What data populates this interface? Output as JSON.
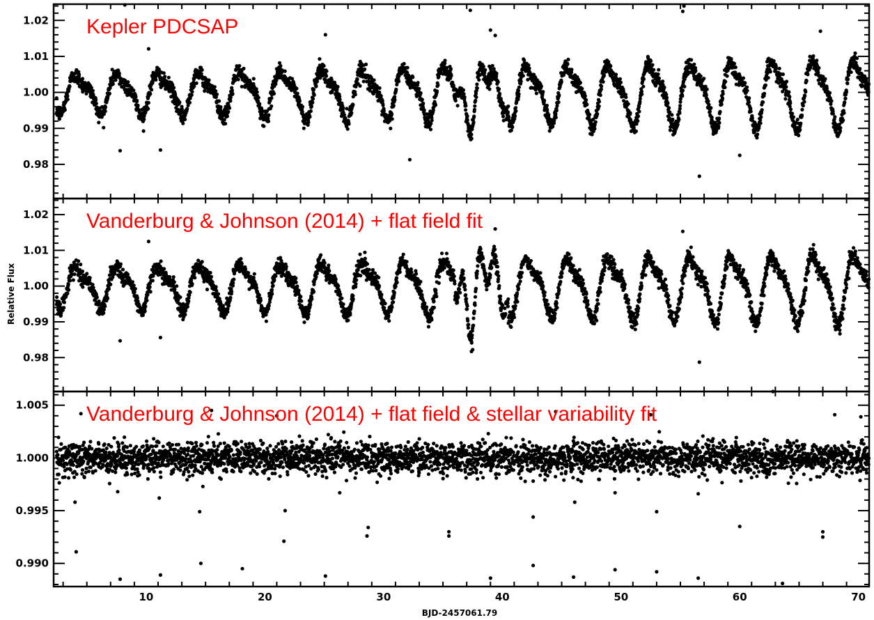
{
  "chart_data": {
    "type": "scatter",
    "ylabel": "Relative Flux",
    "xlabel": "BJD-2457061.79",
    "xlim": [
      2.2,
      70.9
    ],
    "x_ticks": [
      10,
      20,
      30,
      40,
      50,
      60,
      70
    ],
    "x_tick_labels": [
      "10",
      "20",
      "30",
      "40",
      "50",
      "60",
      "70"
    ],
    "marker_color": "#000000",
    "title_color": "#ff0000",
    "cadence_days": 0.0204,
    "panels": [
      {
        "title": "Kepler PDCSAP",
        "ylim": [
          0.9705,
          1.0245
        ],
        "y_ticks": [
          0.98,
          0.99,
          1.0,
          1.01,
          1.02
        ],
        "y_tick_labels": [
          "0.98",
          "0.99",
          "1.00",
          "1.01",
          "1.02"
        ],
        "signal": {
          "mean": 1.0,
          "period_days": 3.45,
          "phase": 0.0,
          "amplitude_start": 0.0055,
          "amplitude_end": 0.0105,
          "dip_sharpness": 1.8,
          "noise_sigma": 0.0011,
          "irregular_segment": {
            "x_start": 35.5,
            "x_end": 40.5,
            "extra_amplitude": 0.003
          }
        },
        "outliers": [
          {
            "x": 7.8,
            "y": 0.9838
          },
          {
            "x": 11.2,
            "y": 0.984
          },
          {
            "x": 32.2,
            "y": 0.9813
          },
          {
            "x": 56.6,
            "y": 0.9767
          },
          {
            "x": 60.0,
            "y": 0.9825
          },
          {
            "x": 25.1,
            "y": 1.016
          },
          {
            "x": 37.3,
            "y": 1.0228
          },
          {
            "x": 39.0,
            "y": 1.0173
          },
          {
            "x": 39.4,
            "y": 1.0158
          },
          {
            "x": 55.3,
            "y": 1.024
          },
          {
            "x": 55.2,
            "y": 1.0225
          },
          {
            "x": 66.8,
            "y": 1.017
          },
          {
            "x": 8.2,
            "y": 1.0243
          },
          {
            "x": 10.2,
            "y": 1.0121
          }
        ]
      },
      {
        "title": "Vanderburg & Johnson (2014) + flat field fit",
        "ylim": [
          0.9705,
          1.0245
        ],
        "y_ticks": [
          0.98,
          0.99,
          1.0,
          1.01,
          1.02
        ],
        "y_tick_labels": [
          "0.98",
          "0.99",
          "1.00",
          "1.01",
          "1.02"
        ],
        "signal": {
          "mean": 1.0,
          "period_days": 3.45,
          "phase": 0.0,
          "amplitude_start": 0.006,
          "amplitude_end": 0.0105,
          "dip_sharpness": 1.8,
          "noise_sigma": 0.0011,
          "irregular_segment": {
            "x_start": 36.0,
            "x_end": 40.5,
            "extra_amplitude": 0.006
          }
        },
        "outliers": [
          {
            "x": 7.8,
            "y": 0.9847
          },
          {
            "x": 11.2,
            "y": 0.9856
          },
          {
            "x": 56.6,
            "y": 0.9787
          },
          {
            "x": 10.2,
            "y": 1.0125
          },
          {
            "x": 39.4,
            "y": 1.016
          },
          {
            "x": 55.2,
            "y": 1.0153
          },
          {
            "x": 37.4,
            "y": 0.9817
          },
          {
            "x": 37.5,
            "y": 0.9822
          }
        ]
      },
      {
        "title": "Vanderburg & Johnson (2014) + flat field & stellar variability fit",
        "ylim": [
          0.9878,
          1.0063
        ],
        "y_ticks": [
          0.99,
          0.995,
          1.0,
          1.005
        ],
        "y_tick_labels": [
          "0.990",
          "0.995",
          "1.000",
          "1.005"
        ],
        "signal": {
          "mean": 1.0,
          "period_days": 3.45,
          "phase": 0.0,
          "amplitude_start": 0.0,
          "amplitude_end": 0.0,
          "dip_sharpness": 1.0,
          "noise_sigma": 0.00075,
          "irregular_segment": null
        },
        "outliers": [
          {
            "x": 4.1,
            "y": 0.9911
          },
          {
            "x": 7.8,
            "y": 0.9885
          },
          {
            "x": 11.2,
            "y": 0.9889
          },
          {
            "x": 14.6,
            "y": 0.99
          },
          {
            "x": 18.1,
            "y": 0.9895
          },
          {
            "x": 21.6,
            "y": 0.9921
          },
          {
            "x": 25.1,
            "y": 0.9888
          },
          {
            "x": 28.6,
            "y": 0.9926
          },
          {
            "x": 28.7,
            "y": 0.9934
          },
          {
            "x": 35.5,
            "y": 0.993
          },
          {
            "x": 35.5,
            "y": 0.9926
          },
          {
            "x": 39.0,
            "y": 0.9886
          },
          {
            "x": 42.6,
            "y": 0.9898
          },
          {
            "x": 46.0,
            "y": 0.9887
          },
          {
            "x": 49.5,
            "y": 0.9894
          },
          {
            "x": 53.0,
            "y": 0.9892
          },
          {
            "x": 56.5,
            "y": 0.9886
          },
          {
            "x": 63.6,
            "y": 0.9881
          },
          {
            "x": 67.0,
            "y": 0.9925
          },
          {
            "x": 67.0,
            "y": 0.993
          },
          {
            "x": 60.0,
            "y": 0.9935
          },
          {
            "x": 4.0,
            "y": 0.9958
          },
          {
            "x": 7.6,
            "y": 0.9968
          },
          {
            "x": 11.1,
            "y": 0.9962
          },
          {
            "x": 14.5,
            "y": 0.9949
          },
          {
            "x": 21.7,
            "y": 0.995
          },
          {
            "x": 42.6,
            "y": 0.9944
          },
          {
            "x": 46.1,
            "y": 0.9958
          },
          {
            "x": 49.5,
            "y": 0.9967
          },
          {
            "x": 53.0,
            "y": 0.9949
          },
          {
            "x": 56.5,
            "y": 0.9966
          },
          {
            "x": 26.3,
            "y": 0.9967
          },
          {
            "x": 62.8,
            "y": 1.0063
          },
          {
            "x": 15.5,
            "y": 1.0045
          },
          {
            "x": 4.5,
            "y": 1.0042
          },
          {
            "x": 21.0,
            "y": 1.004
          },
          {
            "x": 44.5,
            "y": 1.0044
          },
          {
            "x": 52.5,
            "y": 1.0041
          },
          {
            "x": 68.0,
            "y": 1.0041
          },
          {
            "x": 70.2,
            "y": 1.0039
          }
        ]
      }
    ]
  }
}
